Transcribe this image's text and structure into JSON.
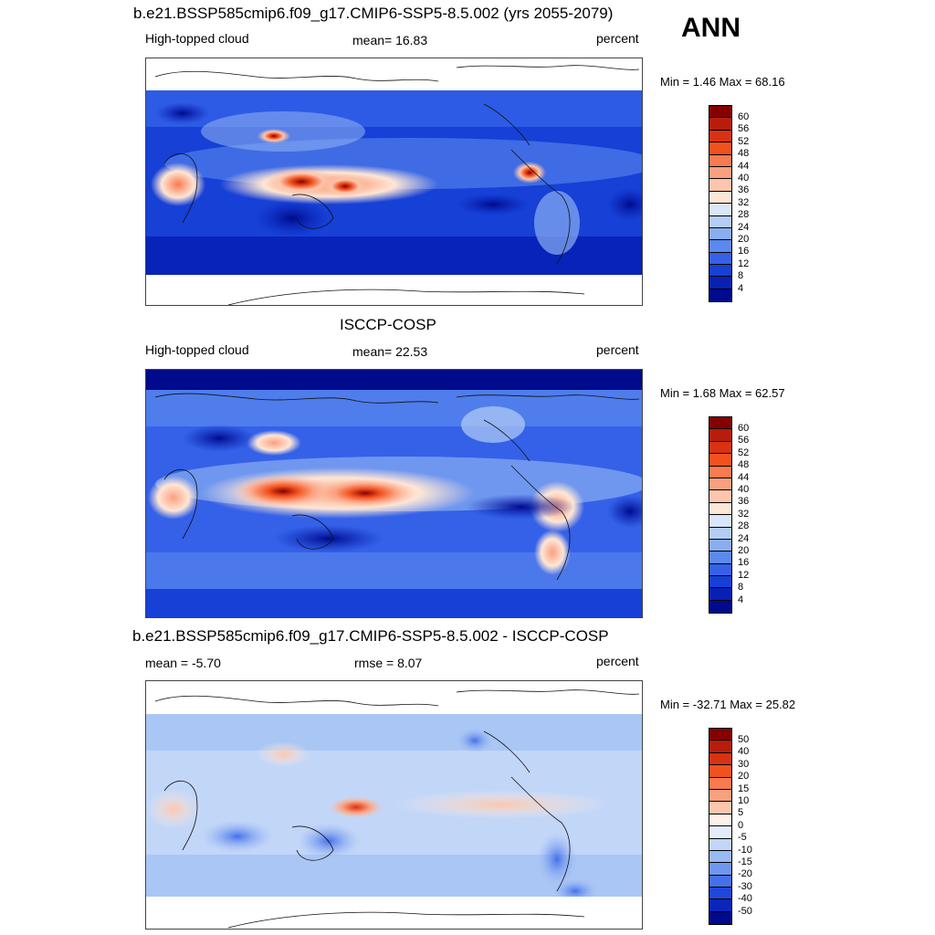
{
  "season": "ANN",
  "panels": [
    {
      "title": "b.e21.BSSP585cmip6.f09_g17.CMIP6-SSP5-8.5.002 (yrs 2055-2079)",
      "left_label": "High-topped cloud",
      "center_label": "mean=  16.83",
      "right_label": "percent",
      "minmax": "Min =   1.46 Max =  68.16",
      "colorbar_labels": [
        "60",
        "56",
        "52",
        "48",
        "44",
        "40",
        "36",
        "32",
        "28",
        "24",
        "20",
        "16",
        "12",
        "8",
        "4"
      ]
    },
    {
      "title": "ISCCP-COSP",
      "left_label": "High-topped cloud",
      "center_label": "mean=  22.53",
      "right_label": "percent",
      "minmax": "Min =   1.68 Max =  62.57",
      "colorbar_labels": [
        "60",
        "56",
        "52",
        "48",
        "44",
        "40",
        "36",
        "32",
        "28",
        "24",
        "20",
        "16",
        "12",
        "8",
        "4"
      ]
    },
    {
      "title": "b.e21.BSSP585cmip6.f09_g17.CMIP6-SSP5-8.5.002 - ISCCP-COSP",
      "left_label": "mean =  -5.70",
      "center_label": "rmse =   8.07",
      "right_label": "percent",
      "minmax": "Min = -32.71 Max =  25.82",
      "colorbar_labels": [
        "50",
        "40",
        "30",
        "20",
        "15",
        "10",
        "5",
        "0",
        "-5",
        "-10",
        "-15",
        "-20",
        "-30",
        "-40",
        "-50"
      ]
    }
  ],
  "colors": {
    "abs_scale": [
      "#850000",
      "#b81d0c",
      "#d93212",
      "#f2511e",
      "#f97a4f",
      "#fba07f",
      "#fdc6ad",
      "#fee6d6",
      "#d9e6fb",
      "#b4cdf7",
      "#8aaef2",
      "#5b89ee",
      "#3461e8",
      "#1640d6",
      "#0720b6",
      "#000a8c"
    ],
    "diff_scale": [
      "#850000",
      "#b81d0c",
      "#d93212",
      "#f2511e",
      "#f97a4f",
      "#fba07f",
      "#fdc6ad",
      "#fff2e6",
      "#e3ecfc",
      "#c2d6f8",
      "#9abaf4",
      "#6f97ef",
      "#4470ea",
      "#1f48da",
      "#0a25b8",
      "#000a8c"
    ]
  }
}
